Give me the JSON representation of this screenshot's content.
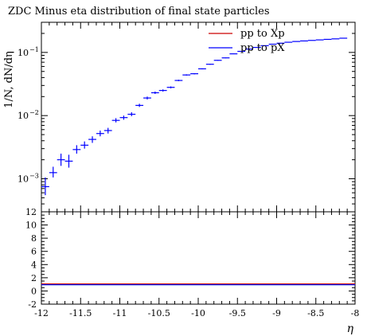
{
  "chart_data": [
    {
      "type": "scatter",
      "title": "ZDC Minus eta distribution of final state particles",
      "ylabel": "1/N, dN/dη",
      "xlabel": "",
      "xlim": [
        -12,
        -8
      ],
      "ylim": [
        0.0003,
        0.3
      ],
      "yscale": "log",
      "yticks": [
        {
          "value": 0.001,
          "base": "10",
          "exp": "−3"
        },
        {
          "value": 0.01,
          "base": "10",
          "exp": "−2"
        },
        {
          "value": 0.1,
          "base": "10",
          "exp": "−1"
        }
      ],
      "legend": {
        "position": "top-right",
        "entries": [
          {
            "label": "pp to Xp",
            "color": "#cc0000"
          },
          {
            "label": "pp to pX",
            "color": "#0000ff"
          }
        ]
      },
      "series": [
        {
          "name": "pp to pX",
          "color": "#0000ff",
          "points": [
            {
              "x": -11.95,
              "y": 0.00075,
              "xerr": 0.05,
              "yerr": [
                0.0002,
                0.0003
              ]
            },
            {
              "x": -11.85,
              "y": 0.00125,
              "xerr": 0.05,
              "yerr": [
                0.0002,
                0.0003
              ]
            },
            {
              "x": -11.75,
              "y": 0.002,
              "xerr": 0.05,
              "yerr": [
                0.0004,
                0.0005
              ]
            },
            {
              "x": -11.65,
              "y": 0.0019,
              "xerr": 0.05,
              "yerr": [
                0.0004,
                0.0005
              ]
            },
            {
              "x": -11.55,
              "y": 0.0029,
              "xerr": 0.05,
              "yerr": [
                0.0004,
                0.0005
              ]
            },
            {
              "x": -11.45,
              "y": 0.0034,
              "xerr": 0.05,
              "yerr": [
                0.0004,
                0.0005
              ]
            },
            {
              "x": -11.35,
              "y": 0.0042,
              "xerr": 0.05,
              "yerr": [
                0.0005,
                0.0005
              ]
            },
            {
              "x": -11.25,
              "y": 0.0052,
              "xerr": 0.05,
              "yerr": [
                0.0005,
                0.0006
              ]
            },
            {
              "x": -11.15,
              "y": 0.0058,
              "xerr": 0.05,
              "yerr": [
                0.0006,
                0.0006
              ]
            },
            {
              "x": -11.05,
              "y": 0.0084,
              "xerr": 0.05,
              "yerr": [
                0.0006,
                0.0007
              ]
            },
            {
              "x": -10.95,
              "y": 0.0093,
              "xerr": 0.05,
              "yerr": [
                0.0007,
                0.0007
              ]
            },
            {
              "x": -10.85,
              "y": 0.0105,
              "xerr": 0.05,
              "yerr": [
                0.0007,
                0.0008
              ]
            },
            {
              "x": -10.75,
              "y": 0.0145,
              "xerr": 0.05,
              "yerr": [
                0.0008,
                0.0009
              ]
            },
            {
              "x": -10.65,
              "y": 0.019,
              "xerr": 0.05,
              "yerr": [
                0.001,
                0.001
              ]
            },
            {
              "x": -10.55,
              "y": 0.023,
              "xerr": 0.05,
              "yerr": [
                0.001,
                0.001
              ]
            },
            {
              "x": -10.45,
              "y": 0.025,
              "xerr": 0.05,
              "yerr": [
                0.001,
                0.001
              ]
            },
            {
              "x": -10.35,
              "y": 0.028,
              "xerr": 0.05,
              "yerr": [
                0.001,
                0.001
              ]
            },
            {
              "x": -10.25,
              "y": 0.036,
              "xerr": 0.05,
              "yerr": [
                0.001,
                0.001
              ]
            },
            {
              "x": -10.15,
              "y": 0.044,
              "xerr": 0.05,
              "yerr": [
                0.001,
                0.001
              ]
            },
            {
              "x": -10.05,
              "y": 0.046,
              "xerr": 0.05,
              "yerr": [
                0.001,
                0.001
              ]
            },
            {
              "x": -9.95,
              "y": 0.055,
              "xerr": 0.05,
              "yerr": [
                0.001,
                0.001
              ]
            },
            {
              "x": -9.85,
              "y": 0.065,
              "xerr": 0.05,
              "yerr": [
                0.001,
                0.001
              ]
            },
            {
              "x": -9.75,
              "y": 0.075,
              "xerr": 0.05,
              "yerr": [
                0.001,
                0.001
              ]
            },
            {
              "x": -9.65,
              "y": 0.082,
              "xerr": 0.05,
              "yerr": [
                0.001,
                0.001
              ]
            },
            {
              "x": -9.55,
              "y": 0.095,
              "xerr": 0.05,
              "yerr": [
                0.001,
                0.001
              ]
            },
            {
              "x": -9.45,
              "y": 0.104,
              "xerr": 0.05,
              "yerr": [
                0.001,
                0.001
              ]
            },
            {
              "x": -9.35,
              "y": 0.113,
              "xerr": 0.05,
              "yerr": [
                0.001,
                0.001
              ]
            },
            {
              "x": -9.25,
              "y": 0.12,
              "xerr": 0.05,
              "yerr": [
                0.001,
                0.001
              ]
            },
            {
              "x": -9.15,
              "y": 0.128,
              "xerr": 0.05,
              "yerr": [
                0.001,
                0.001
              ]
            },
            {
              "x": -9.05,
              "y": 0.135,
              "xerr": 0.05,
              "yerr": [
                0.001,
                0.001
              ]
            },
            {
              "x": -8.95,
              "y": 0.14,
              "xerr": 0.05,
              "yerr": [
                0.001,
                0.001
              ]
            },
            {
              "x": -8.85,
              "y": 0.145,
              "xerr": 0.05,
              "yerr": [
                0.001,
                0.001
              ]
            },
            {
              "x": -8.75,
              "y": 0.149,
              "xerr": 0.05,
              "yerr": [
                0.001,
                0.001
              ]
            },
            {
              "x": -8.65,
              "y": 0.152,
              "xerr": 0.05,
              "yerr": [
                0.001,
                0.001
              ]
            },
            {
              "x": -8.55,
              "y": 0.155,
              "xerr": 0.05,
              "yerr": [
                0.001,
                0.001
              ]
            },
            {
              "x": -8.45,
              "y": 0.158,
              "xerr": 0.05,
              "yerr": [
                0.001,
                0.001
              ]
            },
            {
              "x": -8.35,
              "y": 0.161,
              "xerr": 0.05,
              "yerr": [
                0.001,
                0.001
              ]
            },
            {
              "x": -8.25,
              "y": 0.164,
              "xerr": 0.05,
              "yerr": [
                0.001,
                0.001
              ]
            },
            {
              "x": -8.15,
              "y": 0.168,
              "xerr": 0.05,
              "yerr": [
                0.001,
                0.001
              ]
            }
          ]
        }
      ]
    },
    {
      "type": "line",
      "title": "",
      "xlabel": "η",
      "ylabel": "",
      "xlim": [
        -12,
        -8
      ],
      "ylim": [
        -2,
        12
      ],
      "xticks": [
        {
          "value": -12,
          "label": "-12"
        },
        {
          "value": -11.5,
          "label": "-11.5"
        },
        {
          "value": -11,
          "label": "-11"
        },
        {
          "value": -10.5,
          "label": "-10.5"
        },
        {
          "value": -10,
          "label": "-10"
        },
        {
          "value": -9.5,
          "label": "-9.5"
        },
        {
          "value": -9,
          "label": "-9"
        },
        {
          "value": -8.5,
          "label": "-8.5"
        },
        {
          "value": -8,
          "label": "-8"
        }
      ],
      "yticks": [
        {
          "value": -2,
          "label": "-2"
        },
        {
          "value": 0,
          "label": "0"
        },
        {
          "value": 2,
          "label": "2"
        },
        {
          "value": 4,
          "label": "4"
        },
        {
          "value": 6,
          "label": "6"
        },
        {
          "value": 8,
          "label": "8"
        },
        {
          "value": 10,
          "label": "10"
        },
        {
          "value": 12,
          "label": "12"
        }
      ],
      "series": [
        {
          "color": "#cc0000",
          "x": [
            -12,
            -8
          ],
          "y": [
            1,
            1
          ]
        },
        {
          "color": "#0000ff",
          "x": [
            -12,
            -8
          ],
          "y": [
            1,
            1
          ]
        }
      ]
    }
  ]
}
